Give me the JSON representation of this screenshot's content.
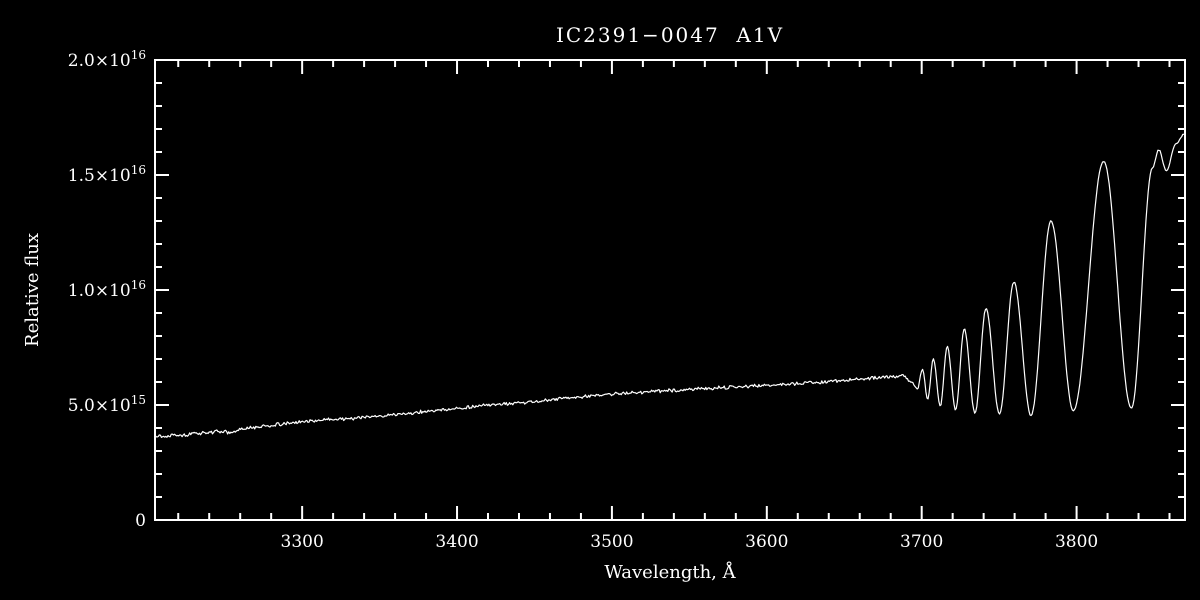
{
  "window": {
    "background_color": "#000000",
    "foreground_color": "#ffffff"
  },
  "chart_data": {
    "type": "line",
    "title": "IC2391−0047  A1V",
    "xlabel": "Wavelength, Å",
    "ylabel": "Relative flux",
    "xlim": [
      3205,
      3870
    ],
    "ylim": [
      0,
      20
    ],
    "y_units": "1e15 (relative flux)",
    "grid": "off",
    "legend": "none",
    "x_ticks": [
      {
        "value": 3300,
        "label": "3300"
      },
      {
        "value": 3400,
        "label": "3400"
      },
      {
        "value": 3500,
        "label": "3500"
      },
      {
        "value": 3600,
        "label": "3600"
      },
      {
        "value": 3700,
        "label": "3700"
      },
      {
        "value": 3800,
        "label": "3800"
      }
    ],
    "x_minor_step": 20,
    "y_ticks": [
      {
        "value": 0,
        "label": "0"
      },
      {
        "value": 5,
        "label": "5.0×10^15"
      },
      {
        "value": 10,
        "label": "1.0×10^16"
      },
      {
        "value": 15,
        "label": "1.5×10^16"
      },
      {
        "value": 20,
        "label": "2.0×10^16"
      }
    ],
    "y_minor_step": 1,
    "series": [
      {
        "name": "spectrum",
        "color": "#ffffff",
        "noise": {
          "seed": 13,
          "continuum_amp": 0.085,
          "line_amp": 0.035,
          "transition_x": 3692
        },
        "control_points": [
          [
            3205,
            3.7
          ],
          [
            3211,
            3.62
          ],
          [
            3217,
            3.73
          ],
          [
            3224,
            3.68
          ],
          [
            3231,
            3.76
          ],
          [
            3239,
            3.8
          ],
          [
            3247,
            3.86
          ],
          [
            3254,
            3.79
          ],
          [
            3262,
            3.96
          ],
          [
            3270,
            4.03
          ],
          [
            3278,
            4.1
          ],
          [
            3286,
            4.16
          ],
          [
            3293,
            4.21
          ],
          [
            3300,
            4.28
          ],
          [
            3310,
            4.33
          ],
          [
            3320,
            4.38
          ],
          [
            3330,
            4.41
          ],
          [
            3340,
            4.46
          ],
          [
            3350,
            4.52
          ],
          [
            3360,
            4.58
          ],
          [
            3370,
            4.65
          ],
          [
            3380,
            4.72
          ],
          [
            3390,
            4.78
          ],
          [
            3400,
            4.85
          ],
          [
            3410,
            4.92
          ],
          [
            3420,
            5.0
          ],
          [
            3430,
            5.03
          ],
          [
            3440,
            5.08
          ],
          [
            3450,
            5.15
          ],
          [
            3460,
            5.22
          ],
          [
            3470,
            5.3
          ],
          [
            3480,
            5.35
          ],
          [
            3490,
            5.42
          ],
          [
            3500,
            5.48
          ],
          [
            3510,
            5.52
          ],
          [
            3520,
            5.56
          ],
          [
            3530,
            5.6
          ],
          [
            3540,
            5.64
          ],
          [
            3550,
            5.68
          ],
          [
            3560,
            5.72
          ],
          [
            3570,
            5.75
          ],
          [
            3580,
            5.78
          ],
          [
            3590,
            5.82
          ],
          [
            3600,
            5.86
          ],
          [
            3610,
            5.9
          ],
          [
            3620,
            5.94
          ],
          [
            3630,
            5.98
          ],
          [
            3640,
            6.02
          ],
          [
            3650,
            6.08
          ],
          [
            3660,
            6.12
          ],
          [
            3670,
            6.18
          ],
          [
            3680,
            6.22
          ],
          [
            3688,
            6.28
          ],
          [
            3693.5,
            6.0
          ],
          [
            3697.2,
            5.7
          ],
          [
            3700.5,
            6.55
          ],
          [
            3703.9,
            5.25
          ],
          [
            3707.5,
            7.0
          ],
          [
            3712.0,
            4.95
          ],
          [
            3716.5,
            7.55
          ],
          [
            3721.9,
            4.8
          ],
          [
            3727.5,
            8.3
          ],
          [
            3734.4,
            4.65
          ],
          [
            3741.5,
            9.2
          ],
          [
            3750.2,
            4.6
          ],
          [
            3759.5,
            10.35
          ],
          [
            3770.6,
            4.55
          ],
          [
            3783.5,
            13.0
          ],
          [
            3797.9,
            4.75
          ],
          [
            3817.5,
            15.6
          ],
          [
            3835.4,
            4.85
          ],
          [
            3849.0,
            15.3
          ],
          [
            3853.0,
            16.1
          ],
          [
            3858.0,
            15.2
          ],
          [
            3864.0,
            16.35
          ],
          [
            3870.0,
            16.8
          ]
        ]
      }
    ]
  }
}
